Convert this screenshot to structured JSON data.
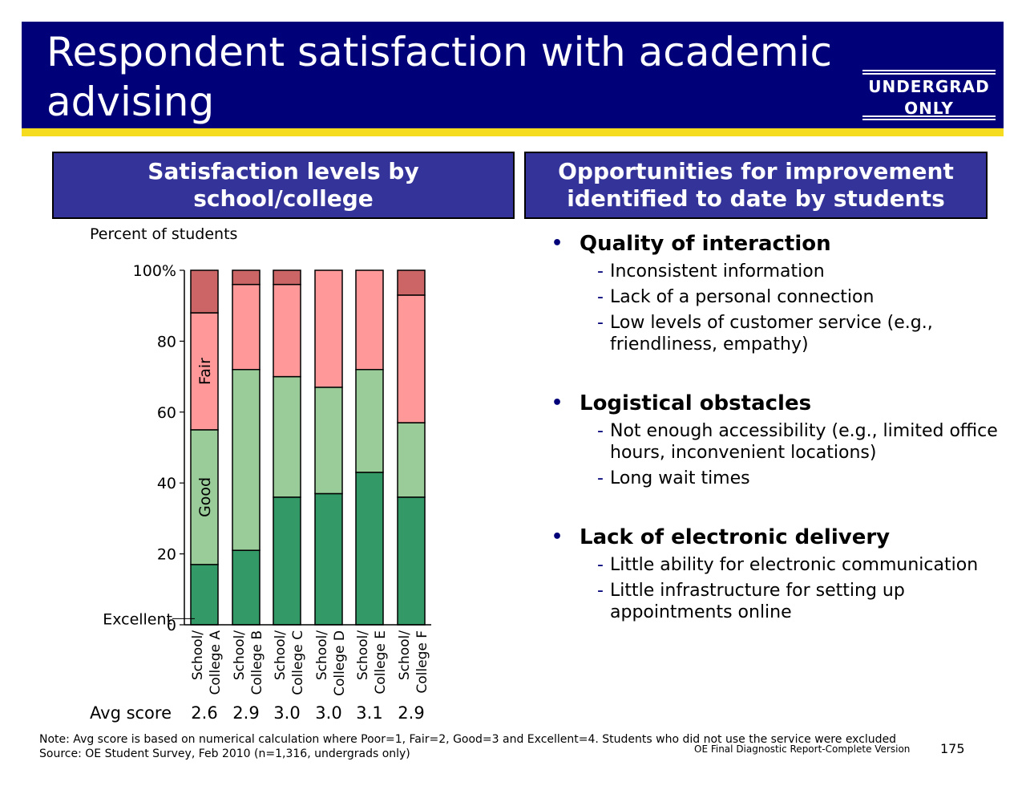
{
  "header": {
    "title_line1": "Respondent satisfaction with academic",
    "title_line2": "advising",
    "badge_line1": "UNDERGRAD",
    "badge_line2": "ONLY",
    "colors": {
      "banner": "#000078",
      "stripe": "#f5dc1e",
      "panel": "#333399"
    }
  },
  "left_panel": {
    "title_line1": "Satisfaction levels by",
    "title_line2": "school/college"
  },
  "right_panel": {
    "title_line1": "Opportunities for improvement",
    "title_line2": "identified to date by students"
  },
  "chart_data": {
    "type": "bar",
    "stacked": true,
    "ylabel": "Percent of students",
    "ylim": [
      0,
      100
    ],
    "ytick_labels": [
      "0",
      "20",
      "40",
      "60",
      "80",
      "100%"
    ],
    "categories": [
      [
        "School/",
        "College A"
      ],
      [
        "School/",
        "College B"
      ],
      [
        "School/",
        "College C"
      ],
      [
        "School/",
        "College D"
      ],
      [
        "School/",
        "College E"
      ],
      [
        "School/",
        "College F"
      ]
    ],
    "series": [
      {
        "name": "Excellent",
        "color": "#339966",
        "values": [
          17,
          21,
          36,
          37,
          43,
          36
        ]
      },
      {
        "name": "Good",
        "color": "#99cc99",
        "values": [
          38,
          51,
          34,
          30,
          29,
          21
        ]
      },
      {
        "name": "Fair",
        "color": "#ff9999",
        "values": [
          33,
          24,
          26,
          33,
          28,
          36
        ]
      },
      {
        "name": "Poor",
        "color": "#cc6666",
        "values": [
          12,
          4,
          4,
          0,
          0,
          7
        ]
      }
    ],
    "avg_label": "Avg score",
    "avg_scores": [
      "2.6",
      "2.9",
      "3.0",
      "3.0",
      "3.1",
      "2.9"
    ]
  },
  "improvements": [
    {
      "heading": "Quality of interaction",
      "items": [
        "Inconsistent information",
        "Lack of a personal connection",
        "Low levels of customer service (e.g., friendliness, empathy)"
      ]
    },
    {
      "heading": "Logistical obstacles",
      "items": [
        "Not enough accessibility (e.g., limited office hours, inconvenient locations)",
        "Long wait times"
      ]
    },
    {
      "heading": "Lack of electronic delivery",
      "items": [
        "Little ability for electronic communication",
        "Little infrastructure for setting up appointments online"
      ]
    }
  ],
  "footer": {
    "note": "Note: Avg score is based on numerical calculation where Poor=1, Fair=2, Good=3 and Excellent=4.  Students who did not use the service were excluded",
    "source": "Source: OE Student Survey, Feb 2010 (n=1,316, undergrads only)",
    "report": "OE Final Diagnostic Report-Complete Version",
    "page": "175"
  }
}
